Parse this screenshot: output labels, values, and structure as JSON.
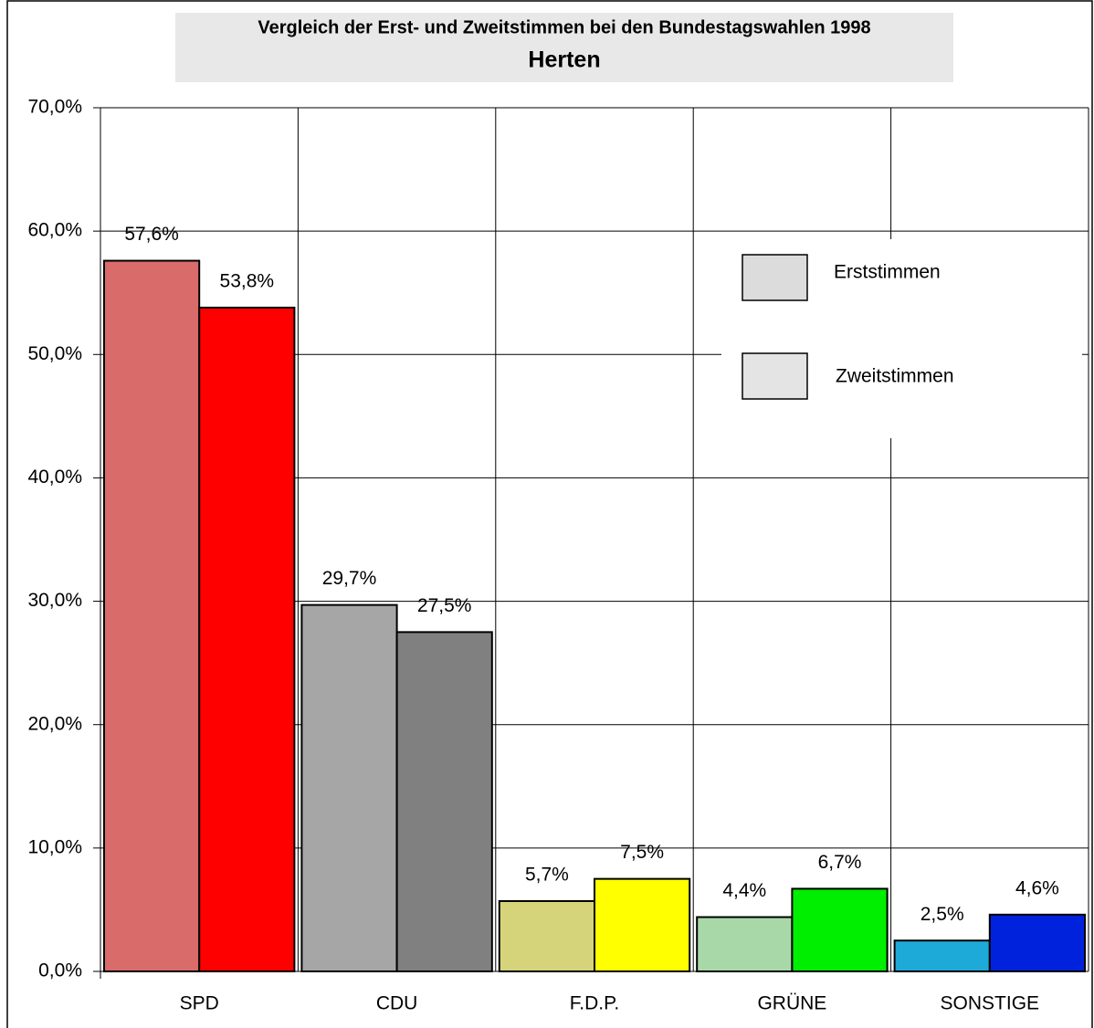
{
  "chart_data": {
    "type": "bar",
    "title": "Vergleich der Erst- und Zweitstimmen bei den Bundestagswahlen 1998",
    "subtitle": "Herten",
    "categories": [
      "SPD",
      "CDU",
      "F.D.P.",
      "GRÜNE",
      "SONSTIGE"
    ],
    "series": [
      {
        "name": "Erststimmen",
        "color": "#dcdcdc",
        "colors": [
          "#d96b6b",
          "#a6a6a6",
          "#d6d47a",
          "#a8d8a8",
          "#1eaad8"
        ],
        "values": [
          57.6,
          29.7,
          5.7,
          4.4,
          2.5
        ],
        "value_labels": [
          "57,6%",
          "29,7%",
          "5,7%",
          "4,4%",
          "2,5%"
        ]
      },
      {
        "name": "Zweitstimmen",
        "color": "#e4e4e4",
        "colors": [
          "#ff0000",
          "#808080",
          "#ffff00",
          "#00ee00",
          "#0022dd"
        ],
        "values": [
          53.8,
          27.5,
          7.5,
          6.7,
          4.6
        ],
        "value_labels": [
          "53,8%",
          "27,5%",
          "7,5%",
          "6,7%",
          "4,6%"
        ]
      }
    ],
    "ylim": [
      0,
      70
    ],
    "yticks": [
      {
        "value": 0,
        "label": "0,0%"
      },
      {
        "value": 10,
        "label": "10,0%"
      },
      {
        "value": 20,
        "label": "20,0%"
      },
      {
        "value": 30,
        "label": "30,0%"
      },
      {
        "value": 40,
        "label": "40,0%"
      },
      {
        "value": 50,
        "label": "50,0%"
      },
      {
        "value": 60,
        "label": "60,0%"
      },
      {
        "value": 70,
        "label": "70,0%"
      }
    ],
    "grid": true
  }
}
